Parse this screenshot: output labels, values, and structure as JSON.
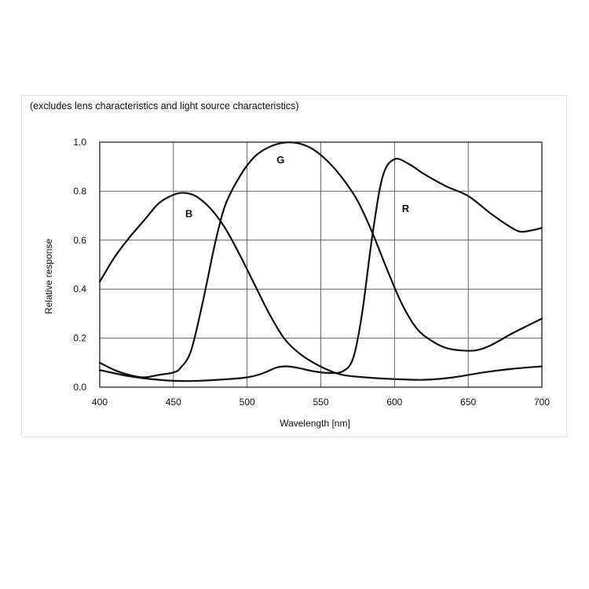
{
  "chart_data": {
    "type": "line",
    "title": "(excludes lens characteristics and light source characteristics)",
    "xlabel": "Wavelength [nm]",
    "ylabel": "Relative response",
    "xlim": [
      400,
      700
    ],
    "ylim": [
      0,
      1.0
    ],
    "x_ticks": [
      "400",
      "450",
      "500",
      "550",
      "600",
      "650",
      "700"
    ],
    "y_ticks": [
      "0.0",
      "0.2",
      "0.4",
      "0.6",
      "0.8",
      "1.0"
    ],
    "grid": true,
    "legend": "none",
    "series": [
      {
        "name": "B",
        "label_position": [
          458,
          0.71
        ],
        "points": [
          [
            400,
            0.43
          ],
          [
            410,
            0.53
          ],
          [
            420,
            0.61
          ],
          [
            430,
            0.68
          ],
          [
            440,
            0.75
          ],
          [
            450,
            0.785
          ],
          [
            457,
            0.793
          ],
          [
            465,
            0.78
          ],
          [
            475,
            0.73
          ],
          [
            485,
            0.65
          ],
          [
            495,
            0.54
          ],
          [
            505,
            0.42
          ],
          [
            515,
            0.3
          ],
          [
            525,
            0.2
          ],
          [
            535,
            0.14
          ],
          [
            545,
            0.1
          ],
          [
            555,
            0.07
          ],
          [
            565,
            0.05
          ],
          [
            580,
            0.04
          ],
          [
            600,
            0.033
          ],
          [
            620,
            0.03
          ],
          [
            640,
            0.04
          ],
          [
            660,
            0.06
          ],
          [
            680,
            0.075
          ],
          [
            700,
            0.085
          ]
        ]
      },
      {
        "name": "G",
        "label_position": [
          520,
          0.93
        ],
        "points": [
          [
            400,
            0.1
          ],
          [
            410,
            0.07
          ],
          [
            420,
            0.05
          ],
          [
            430,
            0.04
          ],
          [
            440,
            0.05
          ],
          [
            450,
            0.06
          ],
          [
            455,
            0.08
          ],
          [
            462,
            0.15
          ],
          [
            470,
            0.35
          ],
          [
            478,
            0.58
          ],
          [
            485,
            0.74
          ],
          [
            495,
            0.86
          ],
          [
            505,
            0.94
          ],
          [
            515,
            0.98
          ],
          [
            525,
            0.998
          ],
          [
            535,
            0.995
          ],
          [
            545,
            0.97
          ],
          [
            555,
            0.92
          ],
          [
            565,
            0.85
          ],
          [
            575,
            0.76
          ],
          [
            585,
            0.63
          ],
          [
            595,
            0.48
          ],
          [
            605,
            0.34
          ],
          [
            615,
            0.24
          ],
          [
            625,
            0.19
          ],
          [
            635,
            0.16
          ],
          [
            645,
            0.15
          ],
          [
            655,
            0.15
          ],
          [
            665,
            0.17
          ],
          [
            680,
            0.22
          ],
          [
            690,
            0.25
          ],
          [
            700,
            0.28
          ]
        ]
      },
      {
        "name": "R",
        "label_position": [
          605,
          0.73
        ],
        "points": [
          [
            400,
            0.07
          ],
          [
            420,
            0.045
          ],
          [
            440,
            0.03
          ],
          [
            460,
            0.025
          ],
          [
            480,
            0.03
          ],
          [
            500,
            0.04
          ],
          [
            510,
            0.055
          ],
          [
            520,
            0.08
          ],
          [
            527,
            0.085
          ],
          [
            535,
            0.078
          ],
          [
            545,
            0.065
          ],
          [
            555,
            0.058
          ],
          [
            565,
            0.065
          ],
          [
            572,
            0.12
          ],
          [
            578,
            0.3
          ],
          [
            585,
            0.62
          ],
          [
            592,
            0.86
          ],
          [
            600,
            0.93
          ],
          [
            610,
            0.91
          ],
          [
            620,
            0.87
          ],
          [
            635,
            0.82
          ],
          [
            650,
            0.78
          ],
          [
            665,
            0.71
          ],
          [
            677,
            0.66
          ],
          [
            685,
            0.635
          ],
          [
            693,
            0.64
          ],
          [
            700,
            0.65
          ]
        ]
      }
    ]
  }
}
